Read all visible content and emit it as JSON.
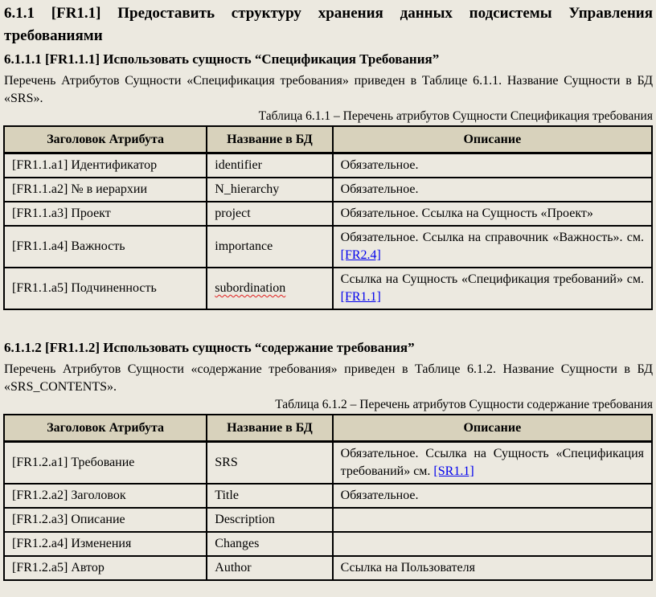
{
  "colors": {
    "page_bg": "#ece9e0",
    "table_header_bg": "#d8d2bc",
    "border": "#000000",
    "link": "#0000ee",
    "spellcheck_underline": "#e02020"
  },
  "heading_main": "6.1.1 [FR1.1] Предоставить структуру хранения данных подсистемы Управления требованиями",
  "section1": {
    "heading": "6.1.1.1 [FR1.1.1] Использовать сущность “Спецификация Требования”",
    "paragraph": "Перечень Атрибутов Сущности «Спецификация требования» приведен в Таблице 6.1.1. Название Сущности в БД «SRS».",
    "caption": "Таблица 6.1.1 – Перечень атрибутов Сущности Спецификация требования",
    "table": {
      "headers": [
        "Заголовок Атрибута",
        "Название в БД",
        "Описание"
      ],
      "rows": [
        {
          "attr": "[FR1.1.a1] Идентификатор",
          "db": "identifier",
          "desc": "Обязательное."
        },
        {
          "attr": "[FR1.1.a2] № в иерархии",
          "db": "N_hierarchy",
          "desc": "Обязательное."
        },
        {
          "attr": "[FR1.1.a3] Проект",
          "db": "project",
          "desc": "Обязательное. Ссылка на Сущность «Проект»"
        },
        {
          "attr": "[FR1.1.a4] Важность",
          "db": "importance",
          "desc": "Обязательное. Ссылка на справочник «Важность». см. ",
          "link": "[FR2.4]"
        },
        {
          "attr": "[FR1.1.a5] Подчиненность",
          "db": "subordination",
          "desc": "Ссылка на Сущность «Спецификация требований» см. ",
          "link": "[FR1.1]"
        }
      ]
    }
  },
  "section2": {
    "heading": "6.1.1.2 [FR1.1.2] Использовать сущность “содержание требования”",
    "paragraph": "Перечень Атрибутов Сущности «содержание требования» приведен в Таблице 6.1.2. Название Сущности в БД «SRS_CONTENTS».",
    "caption": "Таблица 6.1.2 – Перечень атрибутов Сущности содержание требования",
    "table": {
      "headers": [
        "Заголовок Атрибута",
        "Название в БД",
        "Описание"
      ],
      "rows": [
        {
          "attr": "[FR1.2.a1] Требование",
          "db": "SRS",
          "desc": "Обязательное. Ссылка на Сущность «Спецификация требований» см. ",
          "link": "[SR1.1]"
        },
        {
          "attr": "[FR1.2.a2] Заголовок",
          "db": "Title",
          "desc": "Обязательное."
        },
        {
          "attr": "[FR1.2.a3] Описание",
          "db": "Description",
          "desc": ""
        },
        {
          "attr": "[FR1.2.a4] Изменения",
          "db": "Changes",
          "desc": ""
        },
        {
          "attr": "[FR1.2.a5] Автор",
          "db": "Author",
          "desc": "Ссылка на Пользователя"
        }
      ]
    }
  }
}
